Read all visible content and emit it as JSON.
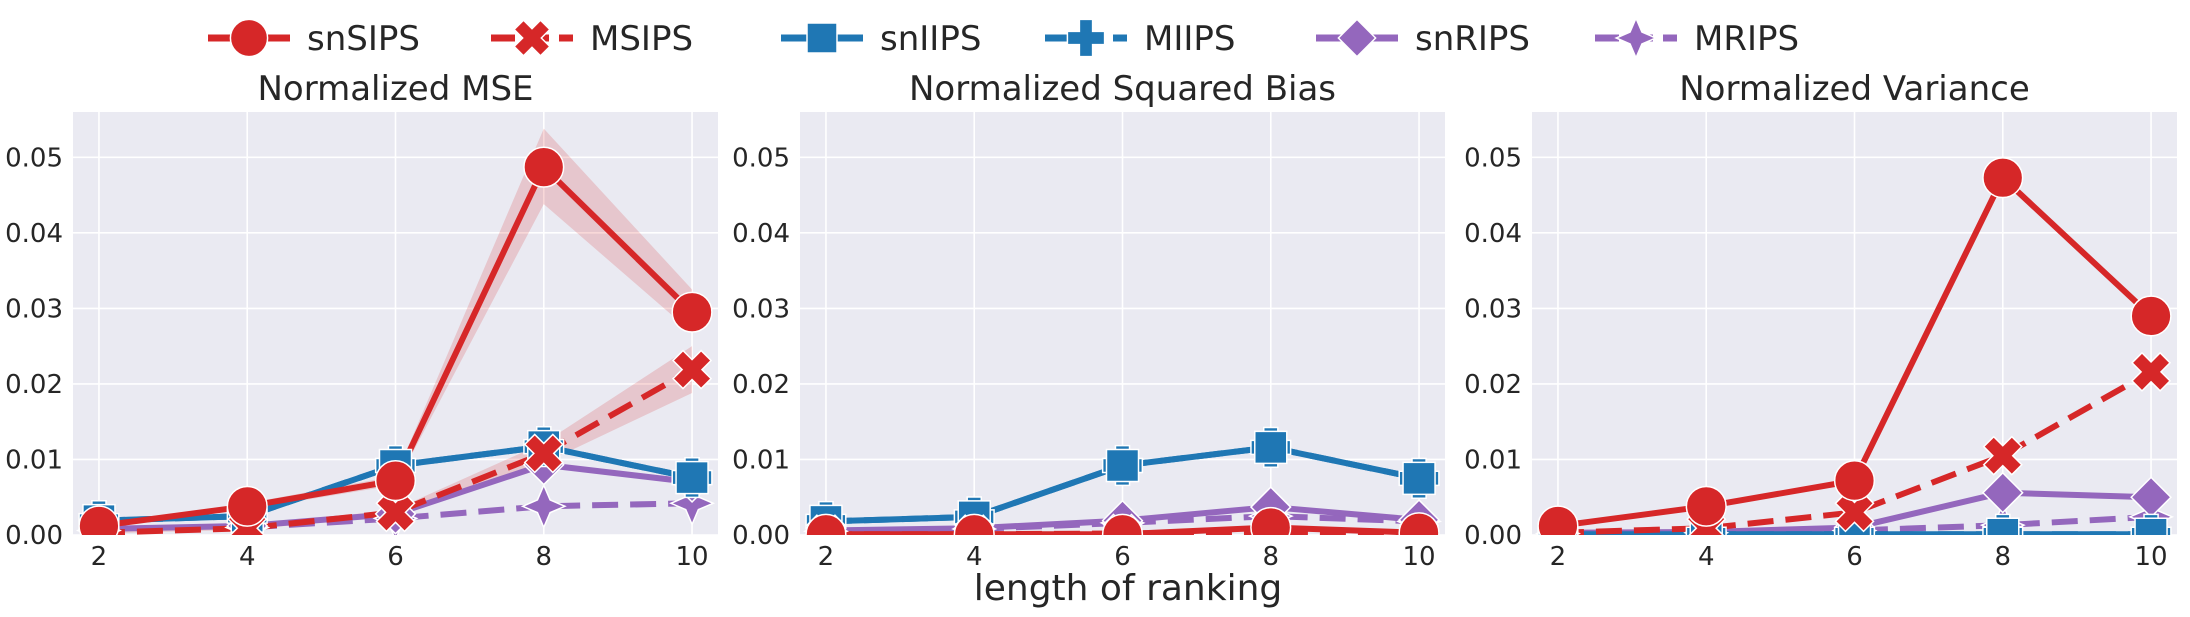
{
  "colors": {
    "red": "#d62728",
    "blue": "#1f77b4",
    "purple": "#9467bd",
    "panel_bg": "#eaeaf2",
    "grid": "#ffffff"
  },
  "legend": [
    {
      "name": "snSIPS",
      "color": "#d62728",
      "dash": "solid",
      "marker": "circle"
    },
    {
      "name": "MSIPS",
      "color": "#d62728",
      "dash": "dashed",
      "marker": "x"
    },
    {
      "name": "snIIPS",
      "color": "#1f77b4",
      "dash": "solid",
      "marker": "square"
    },
    {
      "name": "MIIPS",
      "color": "#1f77b4",
      "dash": "dashed",
      "marker": "plus"
    },
    {
      "name": "snRIPS",
      "color": "#9467bd",
      "dash": "solid",
      "marker": "diamond"
    },
    {
      "name": "MRIPS",
      "color": "#9467bd",
      "dash": "dashed",
      "marker": "star"
    }
  ],
  "xlabel": "length of ranking",
  "chart_data": [
    {
      "type": "line",
      "title": "Normalized MSE",
      "x": [
        2,
        4,
        6,
        8,
        10
      ],
      "xticks": [
        "2",
        "4",
        "6",
        "8",
        "10"
      ],
      "ylim": [
        0,
        0.056
      ],
      "yticks": [
        "0.00",
        "0.01",
        "0.02",
        "0.03",
        "0.04",
        "0.05"
      ],
      "grid": true,
      "series": [
        {
          "name": "snSIPS",
          "values": [
            0.0012,
            0.0038,
            0.0072,
            0.0487,
            0.0295
          ],
          "band": [
            [
              0.001,
              0.0014
            ],
            [
              0.0034,
              0.0042
            ],
            [
              0.0066,
              0.0078
            ],
            [
              0.0438,
              0.0538
            ],
            [
              0.0268,
              0.0325
            ]
          ]
        },
        {
          "name": "MSIPS",
          "values": [
            0.0003,
            0.0009,
            0.003,
            0.0108,
            0.0219
          ],
          "band": [
            [
              0.0002,
              0.0004
            ],
            [
              0.0007,
              0.0011
            ],
            [
              0.0026,
              0.0034
            ],
            [
              0.0095,
              0.0122
            ],
            [
              0.0188,
              0.025
            ]
          ]
        },
        {
          "name": "snIIPS",
          "values": [
            0.0019,
            0.0025,
            0.0092,
            0.0117,
            0.0076
          ]
        },
        {
          "name": "MIIPS",
          "values": [
            0.0019,
            0.0025,
            0.0092,
            0.0117,
            0.0076
          ]
        },
        {
          "name": "snRIPS",
          "values": [
            0.0008,
            0.0012,
            0.0028,
            0.0093,
            0.007
          ]
        },
        {
          "name": "MRIPS",
          "values": [
            0.0006,
            0.001,
            0.0022,
            0.0038,
            0.0042
          ]
        }
      ]
    },
    {
      "type": "line",
      "title": "Normalized Squared Bias",
      "x": [
        2,
        4,
        6,
        8,
        10
      ],
      "xticks": [
        "2",
        "4",
        "6",
        "8",
        "10"
      ],
      "ylim": [
        0,
        0.056
      ],
      "yticks": [
        "0.00",
        "0.01",
        "0.02",
        "0.03",
        "0.04",
        "0.05"
      ],
      "grid": true,
      "series": [
        {
          "name": "snSIPS",
          "values": [
            0.0001,
            0.0001,
            0.0001,
            0.001,
            0.0003
          ]
        },
        {
          "name": "MSIPS",
          "values": [
            0.0001,
            0.0001,
            0.0002,
            0.0004,
            0.0001
          ]
        },
        {
          "name": "snIIPS",
          "values": [
            0.0018,
            0.0024,
            0.0092,
            0.0116,
            0.0075
          ]
        },
        {
          "name": "MIIPS",
          "values": [
            0.0018,
            0.0024,
            0.0092,
            0.0116,
            0.0075
          ]
        },
        {
          "name": "snRIPS",
          "values": [
            0.0006,
            0.0009,
            0.0019,
            0.0037,
            0.002
          ]
        },
        {
          "name": "MRIPS",
          "values": [
            0.0005,
            0.0008,
            0.0016,
            0.0025,
            0.0018
          ]
        }
      ]
    },
    {
      "type": "line",
      "title": "Normalized Variance",
      "x": [
        2,
        4,
        6,
        8,
        10
      ],
      "xticks": [
        "2",
        "4",
        "6",
        "8",
        "10"
      ],
      "ylim": [
        0,
        0.056
      ],
      "yticks": [
        "0.00",
        "0.01",
        "0.02",
        "0.03",
        "0.04",
        "0.05"
      ],
      "grid": true,
      "series": [
        {
          "name": "snSIPS",
          "values": [
            0.0012,
            0.0038,
            0.0072,
            0.0473,
            0.029
          ]
        },
        {
          "name": "MSIPS",
          "values": [
            0.0003,
            0.0009,
            0.003,
            0.0105,
            0.0216
          ]
        },
        {
          "name": "snIIPS",
          "values": [
            0.0001,
            0.0001,
            0.0001,
            0.0001,
            0.0001
          ]
        },
        {
          "name": "MIIPS",
          "values": [
            0.0001,
            0.0001,
            0.0001,
            0.0001,
            0.0001
          ]
        },
        {
          "name": "snRIPS",
          "values": [
            0.0003,
            0.0004,
            0.001,
            0.0056,
            0.005
          ]
        },
        {
          "name": "MRIPS",
          "values": [
            0.0002,
            0.0003,
            0.0006,
            0.0013,
            0.0024
          ]
        }
      ]
    }
  ]
}
